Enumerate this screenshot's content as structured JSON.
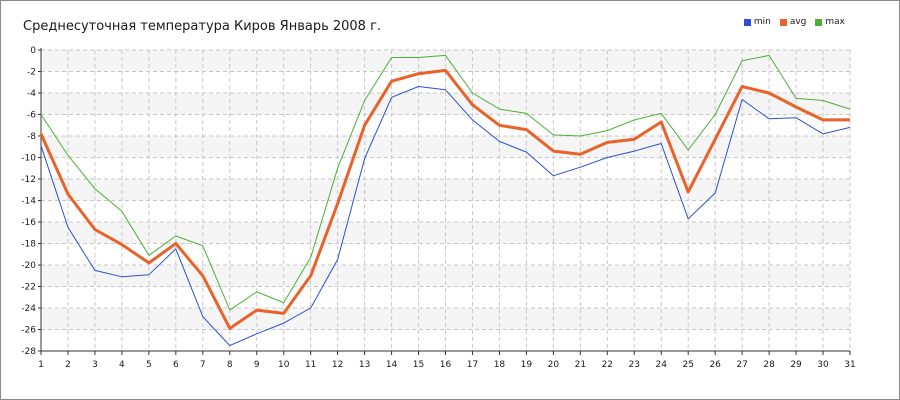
{
  "chart_data": {
    "type": "line",
    "title": "Среднесуточная температура Киров  Январь 2008 г.",
    "xlabel": "",
    "ylabel": "",
    "x": [
      1,
      2,
      3,
      4,
      5,
      6,
      7,
      8,
      9,
      10,
      11,
      12,
      13,
      14,
      15,
      16,
      17,
      18,
      19,
      20,
      21,
      22,
      23,
      24,
      25,
      26,
      27,
      28,
      29,
      30,
      31
    ],
    "ylim": [
      -28,
      0
    ],
    "yticks": [
      0,
      -2,
      -4,
      -6,
      -8,
      -10,
      -12,
      -14,
      -16,
      -18,
      -20,
      -22,
      -24,
      -26,
      -28
    ],
    "grid": true,
    "legend_position": "top-right",
    "series": [
      {
        "name": "min",
        "color": "#2b4fd6",
        "values": [
          -8.9,
          -16.5,
          -20.5,
          -21.1,
          -20.9,
          -18.5,
          -24.8,
          -27.5,
          -26.4,
          -25.4,
          -24.0,
          -19.5,
          -10.1,
          -4.4,
          -3.4,
          -3.7,
          -6.5,
          -8.5,
          -9.5,
          -11.7,
          -10.9,
          -10.0,
          -9.4,
          -8.7,
          -15.7,
          -13.3,
          -4.6,
          -6.4,
          -6.3,
          -7.8,
          -7.2
        ]
      },
      {
        "name": "avg",
        "color": "#e8622a",
        "values": [
          -7.8,
          -13.4,
          -16.7,
          -18.1,
          -19.8,
          -18.0,
          -21.0,
          -25.9,
          -24.2,
          -24.5,
          -21.0,
          -14.3,
          -7.0,
          -2.9,
          -2.2,
          -1.9,
          -5.1,
          -7.0,
          -7.4,
          -9.4,
          -9.7,
          -8.6,
          -8.3,
          -6.7,
          -13.2,
          -8.3,
          -3.4,
          -4.0,
          -5.3,
          -6.5,
          -6.5
        ]
      },
      {
        "name": "max",
        "color": "#4caf35",
        "values": [
          -6.0,
          -9.8,
          -12.9,
          -15.0,
          -19.1,
          -17.3,
          -18.2,
          -24.2,
          -22.5,
          -23.5,
          -19.3,
          -11.0,
          -4.7,
          -0.7,
          -0.7,
          -0.5,
          -4.0,
          -5.5,
          -5.9,
          -7.9,
          -8.0,
          -7.5,
          -6.5,
          -5.9,
          -9.3,
          -6.0,
          -1.0,
          -0.5,
          -4.5,
          -4.7,
          -5.5
        ]
      }
    ]
  }
}
